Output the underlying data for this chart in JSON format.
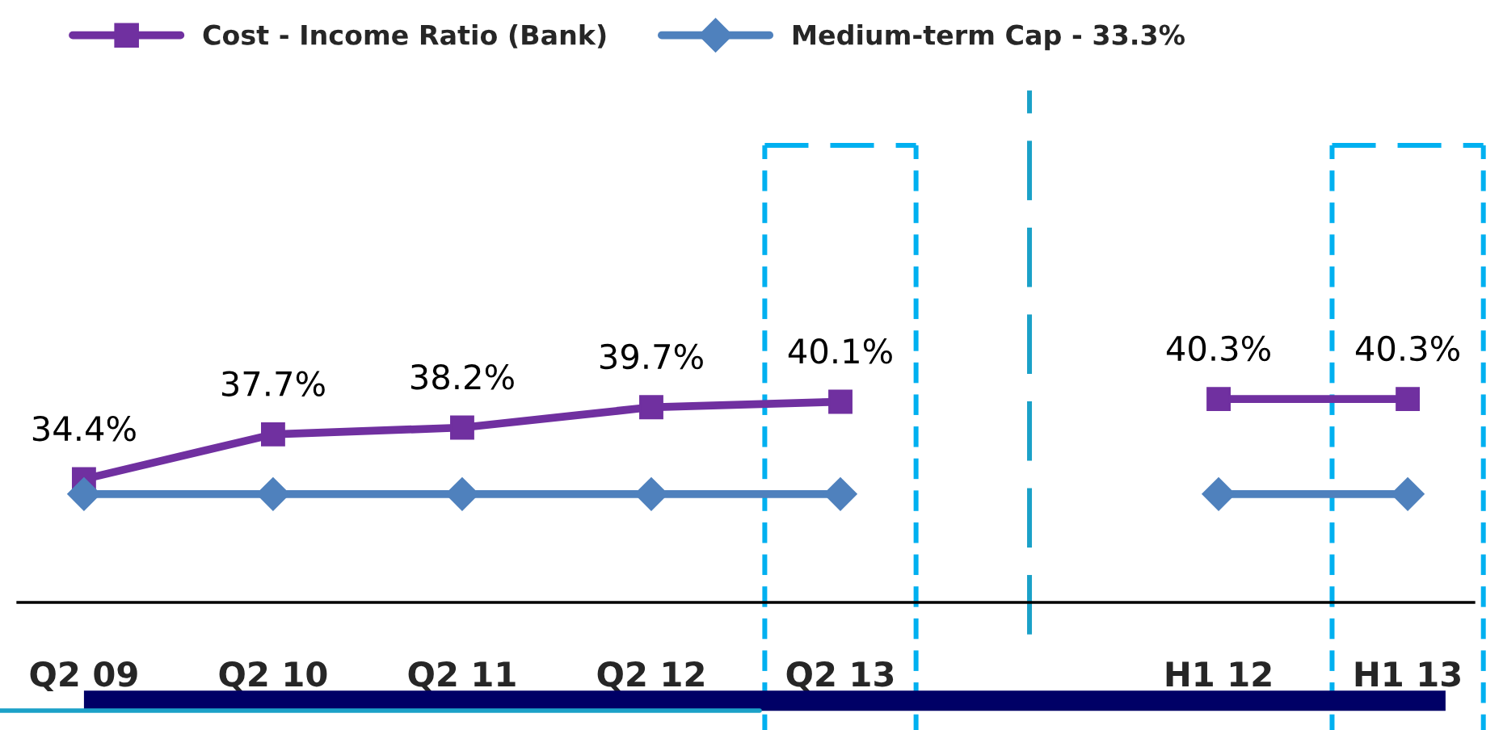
{
  "chart_data": {
    "type": "line",
    "categories": [
      "Q2 09",
      "Q2 10",
      "Q2 11",
      "Q2 12",
      "Q2 13",
      null,
      "H1 12",
      "H1 13"
    ],
    "series": [
      {
        "name": "Cost - Income Ratio (Bank)",
        "color": "#7030a0",
        "marker": "square",
        "values": [
          34.4,
          37.7,
          38.2,
          39.7,
          40.1,
          null,
          40.3,
          40.3
        ],
        "value_labels": [
          "34.4%",
          "37.7%",
          "38.2%",
          "39.7%",
          "40.1%",
          null,
          "40.3%",
          "40.3%"
        ]
      },
      {
        "name": "Medium-term Cap - 33.3%",
        "color": "#4f81bd",
        "marker": "diamond",
        "values": [
          33.3,
          33.3,
          33.3,
          33.3,
          33.3,
          null,
          33.3,
          33.3
        ]
      }
    ],
    "tick_labels": "x",
    "grid": false,
    "legend": "top left",
    "line_style": "solid"
  }
}
